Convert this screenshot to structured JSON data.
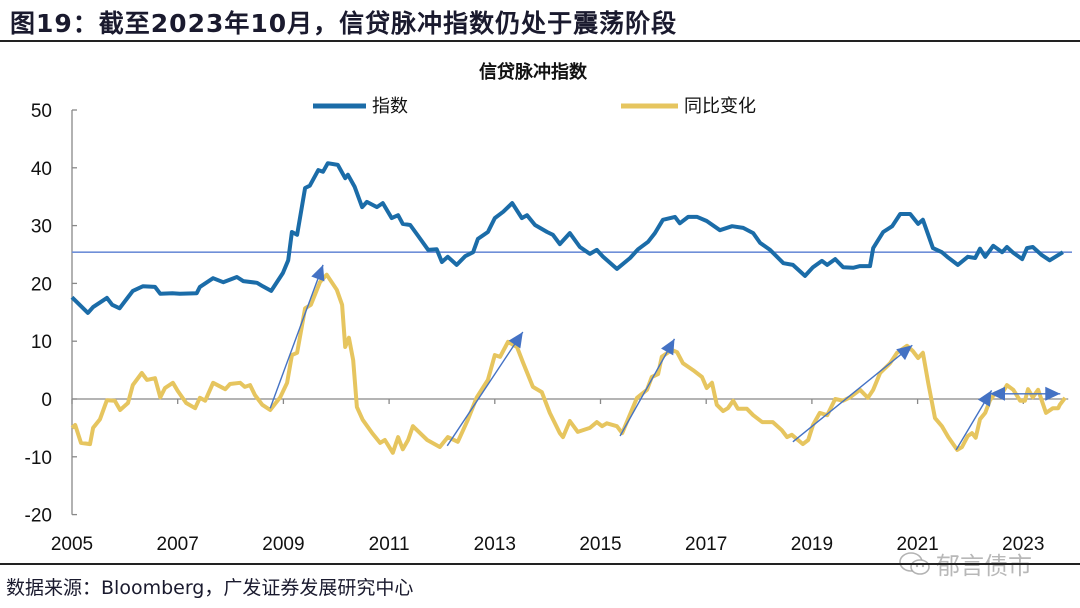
{
  "figure_title": "图19：截至2023年10月，信贷脉冲指数仍处于震荡阶段",
  "source": "数据来源：Bloomberg，广发证券发展研究中心",
  "watermark": "郁言债市",
  "watermark_icon": "wechat-icon",
  "chart_data": {
    "type": "line",
    "title": "信贷脉冲指数",
    "xlabel": "",
    "ylabel": "",
    "xlim": [
      2005,
      2023.85
    ],
    "ylim": [
      -20,
      50
    ],
    "x_ticks": [
      "2005",
      "2007",
      "2009",
      "2011",
      "2013",
      "2015",
      "2017",
      "2019",
      "2021",
      "2023"
    ],
    "y_ticks": [
      "50",
      "40",
      "30",
      "20",
      "10",
      "0",
      "-10",
      "-20"
    ],
    "grid": false,
    "legend_position": "top",
    "reference_line": {
      "y": 25.4,
      "color": "#6f8fd8"
    },
    "series": [
      {
        "name": "指数",
        "color": "#1b6ca8",
        "points": [
          [
            2005.0,
            17.6
          ],
          [
            2005.3,
            14.9
          ],
          [
            2005.4,
            15.9
          ],
          [
            2005.66,
            17.5
          ],
          [
            2005.76,
            16.3
          ],
          [
            2005.9,
            15.7
          ],
          [
            2006.15,
            18.7
          ],
          [
            2006.34,
            19.5
          ],
          [
            2006.57,
            19.4
          ],
          [
            2006.67,
            18.2
          ],
          [
            2006.9,
            18.3
          ],
          [
            2007.04,
            18.2
          ],
          [
            2007.36,
            18.3
          ],
          [
            2007.42,
            19.4
          ],
          [
            2007.67,
            20.9
          ],
          [
            2007.86,
            20.2
          ],
          [
            2008.12,
            21.1
          ],
          [
            2008.24,
            20.4
          ],
          [
            2008.5,
            20.1
          ],
          [
            2008.61,
            19.5
          ],
          [
            2008.77,
            18.7
          ],
          [
            2008.99,
            21.8
          ],
          [
            2009.09,
            24.0
          ],
          [
            2009.16,
            28.9
          ],
          [
            2009.26,
            28.4
          ],
          [
            2009.41,
            36.5
          ],
          [
            2009.5,
            36.9
          ],
          [
            2009.66,
            39.6
          ],
          [
            2009.75,
            39.3
          ],
          [
            2009.84,
            40.8
          ],
          [
            2010.03,
            40.5
          ],
          [
            2010.17,
            38.2
          ],
          [
            2010.22,
            38.8
          ],
          [
            2010.35,
            36.7
          ],
          [
            2010.49,
            33.2
          ],
          [
            2010.58,
            34.1
          ],
          [
            2010.77,
            33.2
          ],
          [
            2010.88,
            33.9
          ],
          [
            2011.05,
            31.3
          ],
          [
            2011.17,
            31.8
          ],
          [
            2011.26,
            30.3
          ],
          [
            2011.4,
            30.1
          ],
          [
            2011.55,
            28.2
          ],
          [
            2011.74,
            25.8
          ],
          [
            2011.9,
            25.9
          ],
          [
            2012.0,
            23.7
          ],
          [
            2012.11,
            24.6
          ],
          [
            2012.28,
            23.2
          ],
          [
            2012.44,
            24.7
          ],
          [
            2012.59,
            25.4
          ],
          [
            2012.68,
            27.7
          ],
          [
            2012.87,
            28.9
          ],
          [
            2013.0,
            31.3
          ],
          [
            2013.16,
            32.4
          ],
          [
            2013.33,
            33.9
          ],
          [
            2013.51,
            31.3
          ],
          [
            2013.61,
            31.8
          ],
          [
            2013.76,
            30.1
          ],
          [
            2013.99,
            28.9
          ],
          [
            2014.1,
            28.4
          ],
          [
            2014.23,
            26.8
          ],
          [
            2014.42,
            28.7
          ],
          [
            2014.61,
            26.3
          ],
          [
            2014.8,
            25.1
          ],
          [
            2014.93,
            25.8
          ],
          [
            2015.05,
            24.6
          ],
          [
            2015.31,
            22.5
          ],
          [
            2015.56,
            24.4
          ],
          [
            2015.71,
            25.9
          ],
          [
            2015.9,
            27.2
          ],
          [
            2016.03,
            28.7
          ],
          [
            2016.18,
            31.0
          ],
          [
            2016.41,
            31.5
          ],
          [
            2016.5,
            30.4
          ],
          [
            2016.66,
            31.5
          ],
          [
            2016.83,
            31.5
          ],
          [
            2017.01,
            30.8
          ],
          [
            2017.26,
            29.2
          ],
          [
            2017.49,
            29.9
          ],
          [
            2017.7,
            29.6
          ],
          [
            2017.89,
            28.7
          ],
          [
            2018.02,
            27.0
          ],
          [
            2018.21,
            25.8
          ],
          [
            2018.46,
            23.5
          ],
          [
            2018.64,
            23.2
          ],
          [
            2018.87,
            21.3
          ],
          [
            2019.02,
            22.8
          ],
          [
            2019.19,
            23.9
          ],
          [
            2019.29,
            23.2
          ],
          [
            2019.44,
            24.2
          ],
          [
            2019.59,
            22.8
          ],
          [
            2019.78,
            22.7
          ],
          [
            2019.91,
            23.0
          ],
          [
            2020.1,
            23.0
          ],
          [
            2020.16,
            26.1
          ],
          [
            2020.35,
            28.9
          ],
          [
            2020.52,
            29.9
          ],
          [
            2020.67,
            32.0
          ],
          [
            2020.86,
            32.0
          ],
          [
            2021.01,
            30.3
          ],
          [
            2021.1,
            31.0
          ],
          [
            2021.29,
            26.1
          ],
          [
            2021.46,
            25.4
          ],
          [
            2021.56,
            24.6
          ],
          [
            2021.76,
            23.2
          ],
          [
            2021.95,
            24.6
          ],
          [
            2022.09,
            24.4
          ],
          [
            2022.18,
            26.0
          ],
          [
            2022.28,
            24.6
          ],
          [
            2022.43,
            26.5
          ],
          [
            2022.6,
            25.4
          ],
          [
            2022.69,
            26.3
          ],
          [
            2022.81,
            25.3
          ],
          [
            2022.98,
            24.2
          ],
          [
            2023.07,
            26.1
          ],
          [
            2023.18,
            26.3
          ],
          [
            2023.35,
            24.9
          ],
          [
            2023.5,
            24.0
          ],
          [
            2023.75,
            25.4
          ]
        ]
      },
      {
        "name": "同比变化",
        "color": "#e6c55f",
        "points": [
          [
            2005.0,
            -5.0
          ],
          [
            2005.06,
            -4.5
          ],
          [
            2005.17,
            -7.6
          ],
          [
            2005.34,
            -7.8
          ],
          [
            2005.4,
            -5.0
          ],
          [
            2005.53,
            -3.5
          ],
          [
            2005.66,
            -0.2
          ],
          [
            2005.81,
            -0.3
          ],
          [
            2005.91,
            -1.9
          ],
          [
            2006.06,
            -0.7
          ],
          [
            2006.15,
            2.4
          ],
          [
            2006.32,
            4.5
          ],
          [
            2006.42,
            3.3
          ],
          [
            2006.57,
            3.6
          ],
          [
            2006.67,
            0.3
          ],
          [
            2006.76,
            1.9
          ],
          [
            2006.91,
            2.8
          ],
          [
            2007.0,
            1.4
          ],
          [
            2007.16,
            -0.7
          ],
          [
            2007.33,
            -1.6
          ],
          [
            2007.42,
            0.2
          ],
          [
            2007.52,
            -0.3
          ],
          [
            2007.67,
            2.8
          ],
          [
            2007.9,
            1.7
          ],
          [
            2007.99,
            2.6
          ],
          [
            2008.18,
            2.8
          ],
          [
            2008.27,
            2.1
          ],
          [
            2008.37,
            2.4
          ],
          [
            2008.46,
            0.7
          ],
          [
            2008.6,
            -1.0
          ],
          [
            2008.75,
            -1.9
          ],
          [
            2008.94,
            0.3
          ],
          [
            2009.07,
            2.8
          ],
          [
            2009.16,
            7.6
          ],
          [
            2009.26,
            8.0
          ],
          [
            2009.41,
            15.7
          ],
          [
            2009.52,
            16.3
          ],
          [
            2009.69,
            20.2
          ],
          [
            2009.82,
            21.5
          ],
          [
            2010.01,
            18.9
          ],
          [
            2010.11,
            16.3
          ],
          [
            2010.17,
            9.0
          ],
          [
            2010.24,
            10.6
          ],
          [
            2010.32,
            6.7
          ],
          [
            2010.39,
            -1.4
          ],
          [
            2010.5,
            -3.6
          ],
          [
            2010.68,
            -5.9
          ],
          [
            2010.83,
            -7.6
          ],
          [
            2010.92,
            -7.1
          ],
          [
            2011.07,
            -9.3
          ],
          [
            2011.17,
            -6.6
          ],
          [
            2011.26,
            -8.7
          ],
          [
            2011.36,
            -7.1
          ],
          [
            2011.45,
            -4.7
          ],
          [
            2011.72,
            -7.1
          ],
          [
            2011.96,
            -8.3
          ],
          [
            2012.11,
            -6.6
          ],
          [
            2012.3,
            -7.4
          ],
          [
            2012.49,
            -3.6
          ],
          [
            2012.66,
            0.3
          ],
          [
            2012.87,
            3.3
          ],
          [
            2013.0,
            7.6
          ],
          [
            2013.1,
            7.3
          ],
          [
            2013.25,
            9.9
          ],
          [
            2013.42,
            9.0
          ],
          [
            2013.53,
            6.4
          ],
          [
            2013.72,
            2.1
          ],
          [
            2013.89,
            1.2
          ],
          [
            2014.04,
            -2.4
          ],
          [
            2014.23,
            -5.9
          ],
          [
            2014.29,
            -6.6
          ],
          [
            2014.42,
            -3.8
          ],
          [
            2014.57,
            -5.7
          ],
          [
            2014.8,
            -5.0
          ],
          [
            2014.93,
            -4.0
          ],
          [
            2015.03,
            -4.7
          ],
          [
            2015.12,
            -4.2
          ],
          [
            2015.31,
            -4.7
          ],
          [
            2015.41,
            -5.9
          ],
          [
            2015.69,
            0.2
          ],
          [
            2015.88,
            1.6
          ],
          [
            2015.97,
            3.8
          ],
          [
            2016.09,
            4.3
          ],
          [
            2016.16,
            7.3
          ],
          [
            2016.35,
            8.5
          ],
          [
            2016.45,
            8.1
          ],
          [
            2016.56,
            6.2
          ],
          [
            2016.75,
            5.0
          ],
          [
            2016.92,
            3.8
          ],
          [
            2017.01,
            1.9
          ],
          [
            2017.11,
            2.8
          ],
          [
            2017.2,
            -1.0
          ],
          [
            2017.32,
            -2.1
          ],
          [
            2017.41,
            -1.6
          ],
          [
            2017.51,
            -0.3
          ],
          [
            2017.6,
            -1.7
          ],
          [
            2017.77,
            -1.7
          ],
          [
            2017.89,
            -2.8
          ],
          [
            2018.06,
            -4.0
          ],
          [
            2018.26,
            -4.0
          ],
          [
            2018.43,
            -5.4
          ],
          [
            2018.53,
            -6.6
          ],
          [
            2018.62,
            -6.2
          ],
          [
            2018.83,
            -7.8
          ],
          [
            2018.93,
            -7.1
          ],
          [
            2019.02,
            -4.5
          ],
          [
            2019.15,
            -2.4
          ],
          [
            2019.29,
            -2.8
          ],
          [
            2019.44,
            0.0
          ],
          [
            2019.59,
            -0.3
          ],
          [
            2019.72,
            0.3
          ],
          [
            2019.91,
            1.6
          ],
          [
            2020.06,
            0.2
          ],
          [
            2020.16,
            1.6
          ],
          [
            2020.29,
            4.5
          ],
          [
            2020.48,
            6.2
          ],
          [
            2020.61,
            8.0
          ],
          [
            2020.8,
            9.2
          ],
          [
            2020.91,
            8.3
          ],
          [
            2021.01,
            7.1
          ],
          [
            2021.1,
            8.0
          ],
          [
            2021.2,
            2.8
          ],
          [
            2021.33,
            -3.3
          ],
          [
            2021.46,
            -4.7
          ],
          [
            2021.58,
            -6.6
          ],
          [
            2021.75,
            -8.8
          ],
          [
            2021.84,
            -8.3
          ],
          [
            2021.95,
            -6.4
          ],
          [
            2022.03,
            -5.9
          ],
          [
            2022.1,
            -6.7
          ],
          [
            2022.18,
            -3.5
          ],
          [
            2022.28,
            -2.4
          ],
          [
            2022.37,
            -0.2
          ],
          [
            2022.47,
            1.0
          ],
          [
            2022.6,
            1.0
          ],
          [
            2022.69,
            2.4
          ],
          [
            2022.81,
            1.6
          ],
          [
            2022.94,
            -0.3
          ],
          [
            2023.03,
            -0.3
          ],
          [
            2023.09,
            1.7
          ],
          [
            2023.18,
            0.3
          ],
          [
            2023.28,
            1.6
          ],
          [
            2023.43,
            -2.4
          ],
          [
            2023.56,
            -1.6
          ],
          [
            2023.66,
            -1.6
          ],
          [
            2023.69,
            -1.0
          ],
          [
            2023.79,
            0.2
          ]
        ]
      }
    ],
    "annotations": {
      "color": "#4472c4",
      "arrows": [
        {
          "from": [
            2008.75,
            -1.6
          ],
          "to": [
            2009.75,
            23.2
          ]
        },
        {
          "from": [
            2012.1,
            -8.1
          ],
          "to": [
            2013.53,
            11.6
          ]
        },
        {
          "from": [
            2015.37,
            -6.4
          ],
          "to": [
            2016.4,
            10.4
          ]
        },
        {
          "from": [
            2018.64,
            -7.4
          ],
          "to": [
            2020.9,
            9.3
          ]
        },
        {
          "from": [
            2021.73,
            -8.8
          ],
          "to": [
            2022.4,
            1.5
          ]
        },
        {
          "from": [
            2022.37,
            0.9
          ],
          "to": [
            2023.7,
            0.9
          ],
          "double": true
        }
      ]
    }
  }
}
